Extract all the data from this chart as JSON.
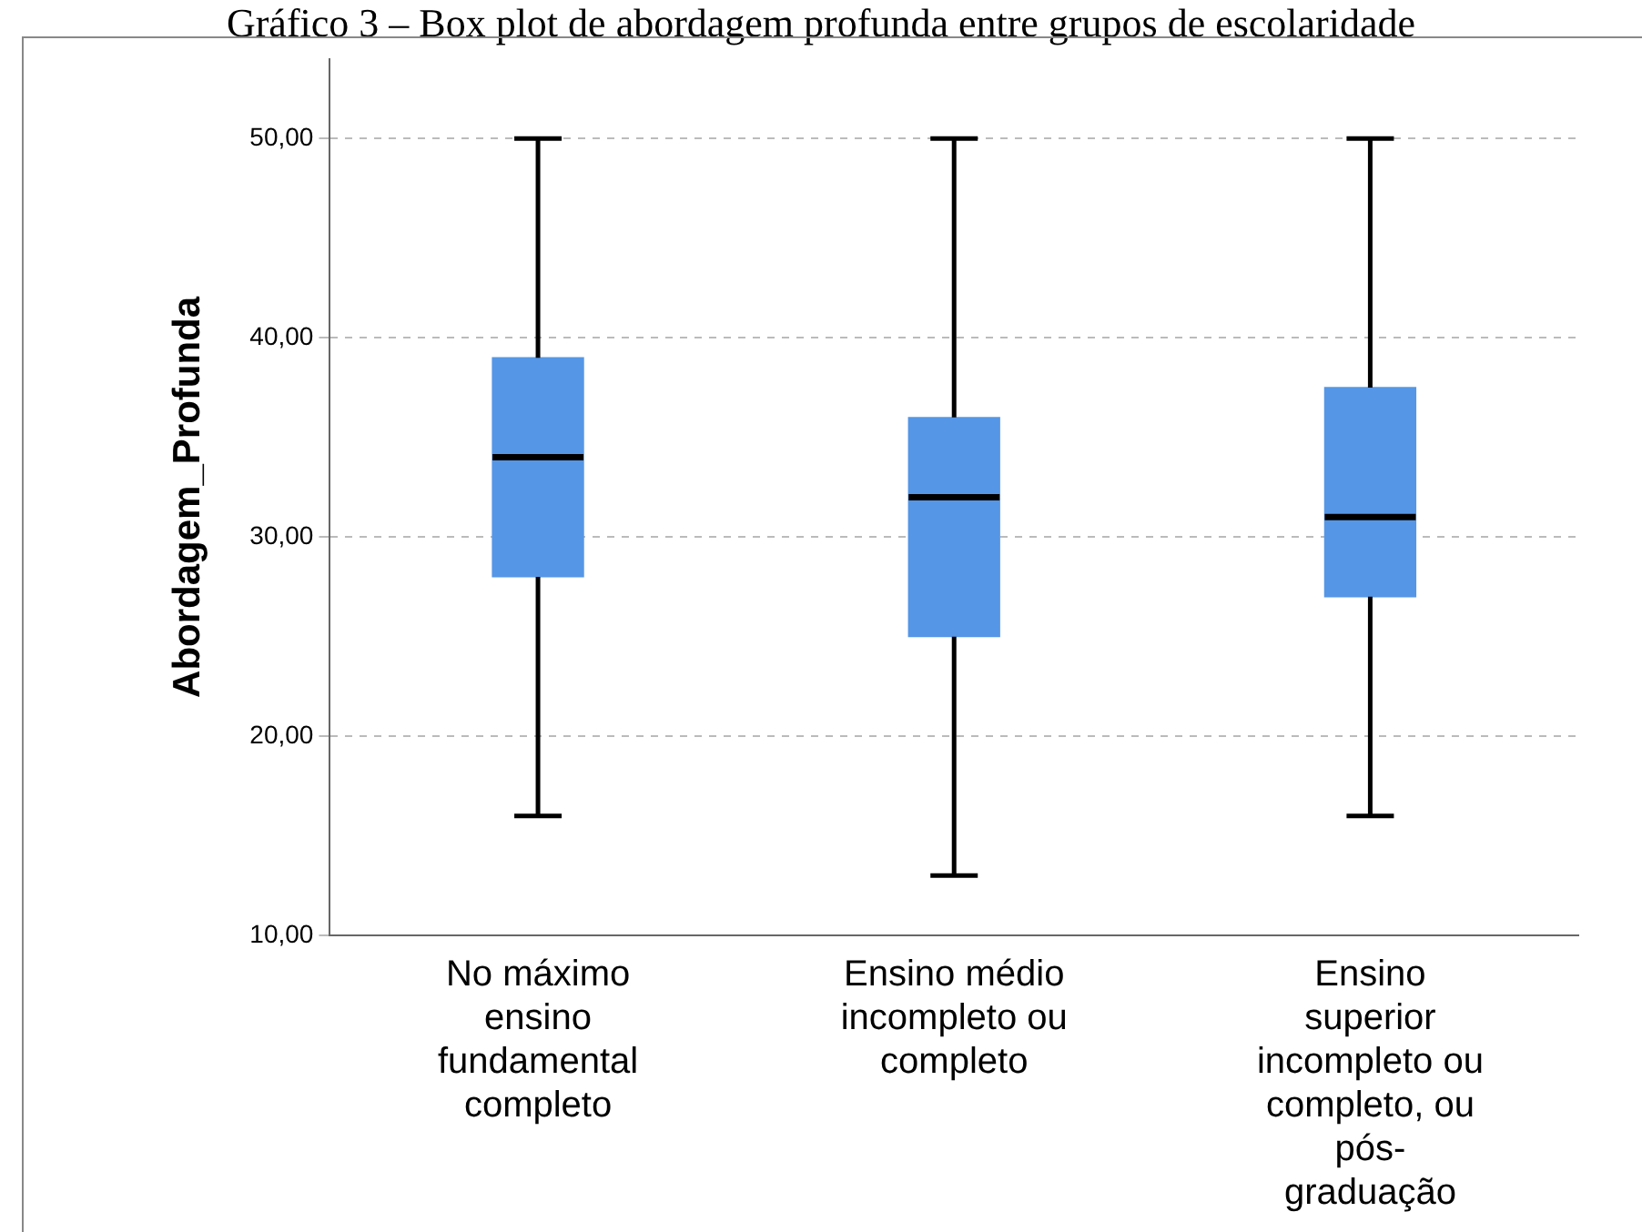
{
  "chart_data": {
    "type": "box",
    "title": "Gráfico 3 – Box plot de abordagem profunda entre grupos de escolaridade",
    "ylabel": "Abordagem_Profunda",
    "categories": [
      "No máximo ensino fundamental completo",
      "Ensino médio incompleto ou completo",
      "Ensino superior incompleto ou completo, ou pós-graduação"
    ],
    "color": "#5596e6",
    "boxes": [
      {
        "low": 16,
        "q1": 28,
        "median": 34,
        "q3": 39,
        "high": 50
      },
      {
        "low": 13,
        "q1": 25,
        "median": 32,
        "q3": 36,
        "high": 50
      },
      {
        "low": 16,
        "q1": 27,
        "median": 31,
        "q3": 37.5,
        "high": 50
      }
    ],
    "ylim": [
      10,
      54
    ],
    "yticks": [
      {
        "value": 10,
        "label": "10,00"
      },
      {
        "value": 20,
        "label": "20,00"
      },
      {
        "value": 30,
        "label": "30,00"
      },
      {
        "value": 40,
        "label": "40,00"
      },
      {
        "value": 50,
        "label": "50,00"
      }
    ],
    "grid": "y",
    "line_style": "dashed"
  }
}
